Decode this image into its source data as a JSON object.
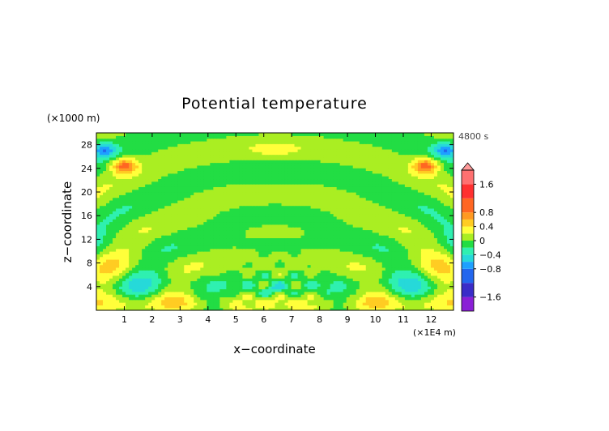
{
  "chart_data": {
    "type": "heatmap",
    "title": "Potential temperature",
    "xlabel": "x−coordinate",
    "ylabel": "z−coordinate",
    "x_unit": "(×1E4 m)",
    "y_unit": "(×1000 m)",
    "time_label": "4800 s",
    "xlim": [
      0,
      12.8
    ],
    "ylim": [
      0,
      30
    ],
    "x_ticks": [
      "1",
      "2",
      "3",
      "4",
      "5",
      "6",
      "7",
      "8",
      "9",
      "10",
      "11",
      "12"
    ],
    "y_ticks": [
      "4",
      "8",
      "12",
      "16",
      "20",
      "24",
      "28"
    ],
    "colorbar": {
      "tick_labels": [
        "1.6",
        "0.8",
        "0.4",
        "0",
        "−0.4",
        "−0.8",
        "−1.6"
      ],
      "tick_values": [
        1.6,
        0.8,
        0.4,
        0,
        -0.4,
        -0.8,
        -1.6
      ],
      "levels": [
        -2.0,
        -1.6,
        -1.2,
        -0.8,
        -0.6,
        -0.4,
        -0.2,
        0,
        0.2,
        0.4,
        0.6,
        0.8,
        1.2,
        1.6,
        2.0
      ],
      "colors": [
        "#8a1fd6",
        "#3a2cc8",
        "#2266ee",
        "#1ea0ff",
        "#26d9d9",
        "#2ff0b0",
        "#22dd44",
        "#aaee22",
        "#ffff3a",
        "#ffcc22",
        "#ff9922",
        "#ff6622",
        "#ff3030",
        "#ff7070"
      ]
    },
    "field_description_features": [
      {
        "x": 6.4,
        "z": 27.3,
        "value": 0.3
      },
      {
        "x": 6.4,
        "z": 23.3,
        "value": -0.1
      },
      {
        "x": 1.0,
        "z": 24.5,
        "value": 0.9
      },
      {
        "x": 11.8,
        "z": 24.5,
        "value": 0.9
      },
      {
        "x": 0.25,
        "z": 27.2,
        "value": -0.7
      },
      {
        "x": 12.55,
        "z": 27.2,
        "value": -0.7
      },
      {
        "x": 6.4,
        "z": 3.5,
        "value": -0.3
      },
      {
        "x": 6.4,
        "z": 1.2,
        "value": 0.2
      }
    ]
  }
}
